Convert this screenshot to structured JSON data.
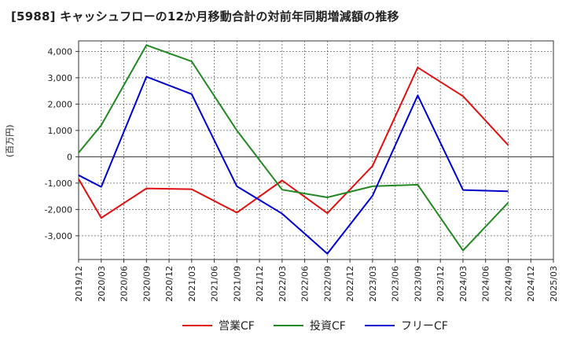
{
  "chart_data": {
    "type": "line",
    "title": "[5988]  キャッシュフローの12か月移動合計の対前年同期増減額の推移",
    "ylabel": "(百万円)",
    "xlabel": "",
    "ylim": [
      -3900,
      4400
    ],
    "yticks": [
      4000,
      3000,
      2000,
      1000,
      0,
      -1000,
      -2000,
      -3000
    ],
    "ytick_labels": [
      "4,000",
      "3,000",
      "2,000",
      "1,000",
      "0",
      "-1,000",
      "-2,000",
      "-3,000"
    ],
    "x_labels": [
      "2019/12",
      "2020/03",
      "2020/06",
      "2020/09",
      "2020/12",
      "2021/03",
      "2021/06",
      "2021/09",
      "2021/12",
      "2022/03",
      "2022/06",
      "2022/09",
      "2022/12",
      "2023/03",
      "2023/06",
      "2023/09",
      "2023/12",
      "2024/03",
      "2024/06",
      "2024/09",
      "2024/12",
      "2025/03"
    ],
    "x_points": [
      "2019/12",
      "2020/03",
      "2020/09",
      "2021/03",
      "2021/09",
      "2022/03",
      "2022/09",
      "2023/03",
      "2023/09",
      "2024/03",
      "2024/09"
    ],
    "series": [
      {
        "name": "営業CF",
        "color": "#dd1111",
        "values": [
          -850,
          -2320,
          -1200,
          -1230,
          -2120,
          -900,
          -2140,
          -350,
          3390,
          2300,
          440
        ]
      },
      {
        "name": "投資CF",
        "color": "#228822",
        "values": [
          150,
          1200,
          4240,
          3620,
          1000,
          -1250,
          -1540,
          -1120,
          -1060,
          -3560,
          -1740
        ]
      },
      {
        "name": "フリーCF",
        "color": "#0000cc",
        "values": [
          -700,
          -1140,
          3040,
          2380,
          -1120,
          -2160,
          -3680,
          -1480,
          2330,
          -1260,
          -1310
        ]
      }
    ],
    "grid": true,
    "legend": "bottom-center"
  }
}
